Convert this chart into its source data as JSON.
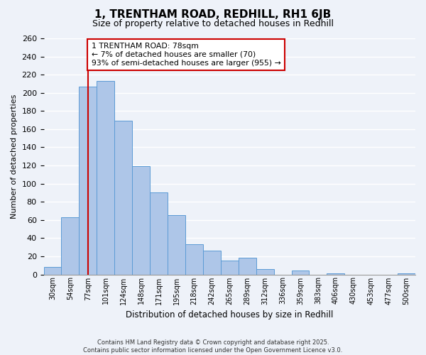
{
  "title": "1, TRENTHAM ROAD, REDHILL, RH1 6JB",
  "subtitle": "Size of property relative to detached houses in Redhill",
  "xlabel": "Distribution of detached houses by size in Redhill",
  "ylabel": "Number of detached properties",
  "bar_labels": [
    "30sqm",
    "54sqm",
    "77sqm",
    "101sqm",
    "124sqm",
    "148sqm",
    "171sqm",
    "195sqm",
    "218sqm",
    "242sqm",
    "265sqm",
    "289sqm",
    "312sqm",
    "336sqm",
    "359sqm",
    "383sqm",
    "406sqm",
    "430sqm",
    "453sqm",
    "477sqm",
    "500sqm"
  ],
  "bar_values": [
    8,
    63,
    207,
    213,
    169,
    119,
    90,
    65,
    33,
    26,
    15,
    18,
    6,
    0,
    4,
    0,
    1,
    0,
    0,
    0,
    1
  ],
  "bar_color": "#aec6e8",
  "bar_edge_color": "#5b9bd5",
  "vline_index": 2,
  "vline_color": "#cc0000",
  "annotation_title": "1 TRENTHAM ROAD: 78sqm",
  "annotation_line1": "← 7% of detached houses are smaller (70)",
  "annotation_line2": "93% of semi-detached houses are larger (955) →",
  "annotation_box_color": "#ffffff",
  "annotation_box_edge": "#cc0000",
  "ylim": [
    0,
    260
  ],
  "yticks": [
    0,
    20,
    40,
    60,
    80,
    100,
    120,
    140,
    160,
    180,
    200,
    220,
    240,
    260
  ],
  "footer_line1": "Contains HM Land Registry data © Crown copyright and database right 2025.",
  "footer_line2": "Contains public sector information licensed under the Open Government Licence v3.0.",
  "bg_color": "#eef2f9",
  "grid_color": "#ffffff",
  "figsize": [
    6.0,
    5.0
  ],
  "dpi": 100
}
